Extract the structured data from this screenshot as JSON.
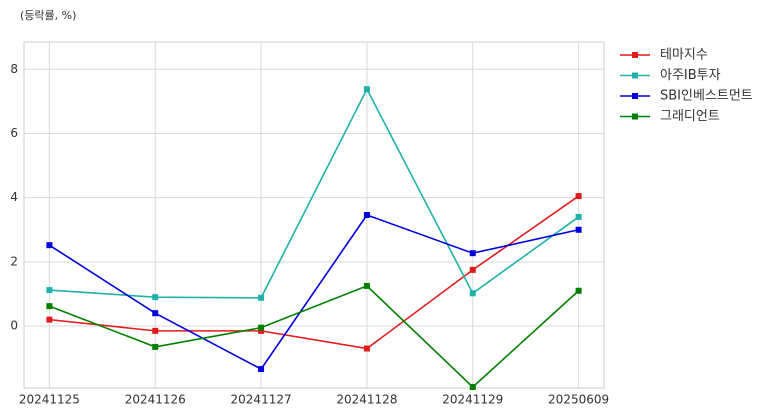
{
  "chart_data": {
    "type": "line",
    "y_label": "(등락률, %)",
    "categories": [
      "20241125",
      "20241126",
      "20241127",
      "20241128",
      "20241129",
      "20250609"
    ],
    "series": [
      {
        "name": "테마지수",
        "color": "#e31a1c",
        "values": [
          0.2,
          -0.15,
          -0.15,
          -0.7,
          1.75,
          4.05
        ]
      },
      {
        "name": "아주IB투자",
        "color": "#20b2aa",
        "values": [
          1.12,
          0.9,
          0.88,
          7.38,
          1.02,
          3.4
        ]
      },
      {
        "name": "SBI인베스트먼트",
        "color": "#0000dd",
        "values": [
          2.52,
          0.4,
          -1.34,
          3.46,
          2.27,
          3.0
        ]
      },
      {
        "name": "그래디언트",
        "color": "#008000",
        "values": [
          0.62,
          -0.65,
          -0.05,
          1.25,
          -1.9,
          1.1
        ]
      }
    ],
    "ylim": [
      -1.93,
      8.85
    ],
    "yticks": [
      0,
      2,
      4,
      6,
      8
    ],
    "grid": true,
    "legend": "outside-right"
  }
}
